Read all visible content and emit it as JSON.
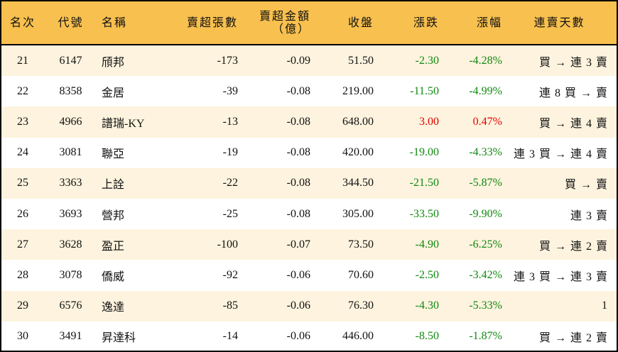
{
  "headers": [
    "名次",
    "代號",
    "名稱",
    "賣超張數",
    "賣超金額\n（億）",
    "收盤",
    "漲跌",
    "漲幅",
    "連賣天數"
  ],
  "header_amount_line1": "賣超金額",
  "header_amount_line2": "（億）",
  "colors": {
    "header_bg": "#f8c04e",
    "odd_row_bg": "#fdf3de",
    "down": "#118811",
    "up": "#e60000"
  },
  "rows": [
    {
      "rank": "21",
      "code": "6147",
      "name": "頎邦",
      "shares": "-173",
      "amount": "-0.09",
      "close": "51.50",
      "change": "-2.30",
      "pct": "-4.28%",
      "streak": "買 → 連 3 賣",
      "dir": "down"
    },
    {
      "rank": "22",
      "code": "8358",
      "name": "金居",
      "shares": "-39",
      "amount": "-0.08",
      "close": "219.00",
      "change": "-11.50",
      "pct": "-4.99%",
      "streak": "連 8 買 → 賣",
      "dir": "down"
    },
    {
      "rank": "23",
      "code": "4966",
      "name": "譜瑞-KY",
      "shares": "-13",
      "amount": "-0.08",
      "close": "648.00",
      "change": "3.00",
      "pct": "0.47%",
      "streak": "買 → 連 4 賣",
      "dir": "up"
    },
    {
      "rank": "24",
      "code": "3081",
      "name": "聯亞",
      "shares": "-19",
      "amount": "-0.08",
      "close": "420.00",
      "change": "-19.00",
      "pct": "-4.33%",
      "streak": "連 3 買 → 連 4 賣",
      "dir": "down"
    },
    {
      "rank": "25",
      "code": "3363",
      "name": "上詮",
      "shares": "-22",
      "amount": "-0.08",
      "close": "344.50",
      "change": "-21.50",
      "pct": "-5.87%",
      "streak": "買 → 賣",
      "dir": "down"
    },
    {
      "rank": "26",
      "code": "3693",
      "name": "營邦",
      "shares": "-25",
      "amount": "-0.08",
      "close": "305.00",
      "change": "-33.50",
      "pct": "-9.90%",
      "streak": "連 3 賣",
      "dir": "down"
    },
    {
      "rank": "27",
      "code": "3628",
      "name": "盈正",
      "shares": "-100",
      "amount": "-0.07",
      "close": "73.50",
      "change": "-4.90",
      "pct": "-6.25%",
      "streak": "買 → 連 2 賣",
      "dir": "down"
    },
    {
      "rank": "28",
      "code": "3078",
      "name": "僑威",
      "shares": "-92",
      "amount": "-0.06",
      "close": "70.60",
      "change": "-2.50",
      "pct": "-3.42%",
      "streak": "連 3 買 → 連 3 賣",
      "dir": "down"
    },
    {
      "rank": "29",
      "code": "6576",
      "name": "逸達",
      "shares": "-85",
      "amount": "-0.06",
      "close": "76.30",
      "change": "-4.30",
      "pct": "-5.33%",
      "streak": "1",
      "dir": "down"
    },
    {
      "rank": "30",
      "code": "3491",
      "name": "昇達科",
      "shares": "-14",
      "amount": "-0.06",
      "close": "446.00",
      "change": "-8.50",
      "pct": "-1.87%",
      "streak": "買 → 連 2 賣",
      "dir": "down"
    }
  ]
}
